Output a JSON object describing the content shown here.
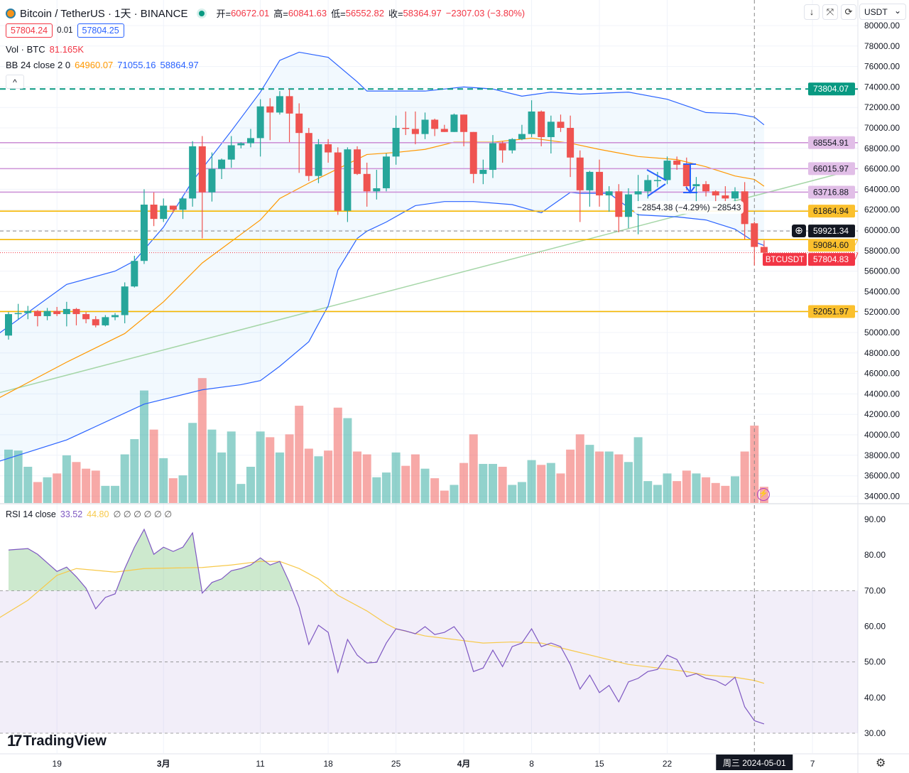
{
  "header": {
    "symbol": "Bitcoin / TetherUS · 1天 · BINANCE",
    "o_label": "开=",
    "o": "60672.01",
    "h_label": "高=",
    "h": "60841.63",
    "l_label": "低=",
    "l": "56552.82",
    "c_label": "收=",
    "c": "58364.97",
    "change": "−2307.03 (−3.80%)"
  },
  "quote": {
    "bid": "57804.24",
    "spread": "0.01",
    "ask": "57804.25"
  },
  "volume_legend": {
    "label": "Vol · BTC",
    "value": "81.165K"
  },
  "bb_legend": {
    "label": "BB 24 close 2 0",
    "basis": "64960.07",
    "upper": "71055.16",
    "lower": "58864.97"
  },
  "rsi_legend": {
    "label": "RSI 14 close",
    "value": "33.52",
    "ma": "44.80",
    "extras": "∅ ∅ ∅ ∅ ∅ ∅"
  },
  "toolbar": {
    "currency": "USDT",
    "currency_chevron": "⌄",
    "collapse": "^",
    "buttons": [
      "↓",
      "⤧",
      "⟳"
    ]
  },
  "brand": "TradingView",
  "colors": {
    "up": "#26a69a",
    "down": "#ef5350",
    "bb": "#2962ff",
    "basis": "#ff9800",
    "rsi": "#7e57c2",
    "rsi_ma": "#f7c94a",
    "hline_purple": "#ce93d8",
    "hline_yellow": "#f5b700",
    "hline_green": "#089981",
    "trend": "#a5d6a7"
  },
  "price_axis": {
    "ticks": [
      "80000.00",
      "78000.00",
      "76000.00",
      "74000.00",
      "72000.00",
      "70000.00",
      "68000.00",
      "66000.00",
      "64000.00",
      "62000.00",
      "60000.00",
      "58000.00",
      "56000.00",
      "54000.00",
      "52000.00",
      "50000.00",
      "48000.00",
      "46000.00",
      "44000.00",
      "42000.00",
      "40000.00",
      "38000.00",
      "36000.00",
      "34000.00"
    ]
  },
  "rsi_axis": {
    "ticks": [
      "90.00",
      "80.00",
      "70.00",
      "60.00",
      "50.00",
      "40.00",
      "30.00"
    ]
  },
  "time_axis": {
    "labels": [
      {
        "date": "2024-02-19",
        "text": "19"
      },
      {
        "date": "2024-03-01",
        "text": "3月"
      },
      {
        "date": "2024-03-11",
        "text": "11"
      },
      {
        "date": "2024-03-18",
        "text": "18"
      },
      {
        "date": "2024-03-25",
        "text": "25"
      },
      {
        "date": "2024-04-01",
        "text": "4月"
      },
      {
        "date": "2024-04-08",
        "text": "8"
      },
      {
        "date": "2024-04-15",
        "text": "15"
      },
      {
        "date": "2024-04-22",
        "text": "22"
      },
      {
        "date": "2024-05-07",
        "text": "7"
      }
    ],
    "crosshair": "周三 2024-05-01"
  },
  "levels": [
    {
      "price": 73804.07,
      "label": "73804.07",
      "kind": "green-dashed"
    },
    {
      "price": 68554.91,
      "label": "68554.91",
      "kind": "purple"
    },
    {
      "price": 66015.97,
      "label": "66015.97",
      "kind": "purple"
    },
    {
      "price": 63716.88,
      "label": "63716.88",
      "kind": "purple"
    },
    {
      "price": 61864.94,
      "label": "61864.94",
      "kind": "yellow"
    },
    {
      "price": 59084.6,
      "label": "59084.60",
      "kind": "yellow"
    },
    {
      "price": 52051.97,
      "label": "52051.97",
      "kind": "yellow"
    }
  ],
  "crosshair_price": {
    "price": 59921.34,
    "label": "59921.34"
  },
  "last_price": {
    "price": 57804.83,
    "label": "57804.83",
    "symbol": "BTCUSDT"
  },
  "measure": {
    "text": "−2854.38 (−4.29%) −28543"
  },
  "chart_data": {
    "type": "candlestick",
    "ohlc_fields": [
      "date",
      "open",
      "high",
      "low",
      "close"
    ],
    "candles": [
      [
        "2024-02-14",
        49700,
        52000,
        49300,
        51800
      ],
      [
        "2024-02-15",
        51800,
        52800,
        51300,
        51900
      ],
      [
        "2024-02-16",
        51900,
        52600,
        51300,
        52100
      ],
      [
        "2024-02-17",
        52100,
        52200,
        50600,
        51600
      ],
      [
        "2024-02-18",
        51600,
        52400,
        51200,
        52100
      ],
      [
        "2024-02-19",
        52100,
        52500,
        51600,
        51800
      ],
      [
        "2024-02-20",
        51800,
        53000,
        50600,
        52300
      ],
      [
        "2024-02-21",
        52300,
        52400,
        50700,
        51800
      ],
      [
        "2024-02-22",
        51800,
        52000,
        50900,
        51300
      ],
      [
        "2024-02-23",
        51300,
        51600,
        50500,
        50700
      ],
      [
        "2024-02-24",
        50700,
        51700,
        50600,
        51500
      ],
      [
        "2024-02-25",
        51500,
        51900,
        51200,
        51700
      ],
      [
        "2024-02-26",
        51700,
        54900,
        50900,
        54500
      ],
      [
        "2024-02-27",
        54500,
        57500,
        54400,
        57000
      ],
      [
        "2024-02-28",
        57000,
        64000,
        56700,
        62500
      ],
      [
        "2024-02-29",
        62500,
        63700,
        60400,
        61100
      ],
      [
        "2024-03-01",
        61100,
        63100,
        60800,
        62400
      ],
      [
        "2024-03-02",
        62400,
        62400,
        61700,
        62000
      ],
      [
        "2024-03-03",
        62000,
        63200,
        61100,
        63100
      ],
      [
        "2024-03-04",
        63100,
        68700,
        62300,
        68200
      ],
      [
        "2024-03-05",
        68200,
        69200,
        59200,
        63700
      ],
      [
        "2024-03-06",
        63700,
        67600,
        62800,
        66000
      ],
      [
        "2024-03-07",
        66000,
        67000,
        65000,
        66900
      ],
      [
        "2024-03-08",
        66900,
        69200,
        66100,
        68300
      ],
      [
        "2024-03-09",
        68300,
        68600,
        68000,
        68500
      ],
      [
        "2024-03-10",
        68500,
        69900,
        68100,
        69000
      ],
      [
        "2024-03-11",
        69000,
        72800,
        67200,
        72100
      ],
      [
        "2024-03-12",
        72100,
        72900,
        68800,
        71500
      ],
      [
        "2024-03-13",
        71500,
        73600,
        71300,
        73100
      ],
      [
        "2024-03-14",
        73100,
        73800,
        68600,
        71400
      ],
      [
        "2024-03-15",
        71400,
        72400,
        65600,
        69500
      ],
      [
        "2024-03-16",
        69500,
        70000,
        64800,
        65300
      ],
      [
        "2024-03-17",
        65300,
        68900,
        64600,
        68400
      ],
      [
        "2024-03-18",
        68400,
        68900,
        66600,
        67600
      ],
      [
        "2024-03-19",
        67600,
        68100,
        61500,
        61900
      ],
      [
        "2024-03-20",
        61900,
        68100,
        60800,
        67900
      ],
      [
        "2024-03-21",
        67900,
        68200,
        65400,
        65500
      ],
      [
        "2024-03-22",
        65500,
        66600,
        62300,
        63800
      ],
      [
        "2024-03-23",
        63800,
        65900,
        63000,
        64100
      ],
      [
        "2024-03-24",
        64100,
        67500,
        63800,
        67200
      ],
      [
        "2024-03-25",
        67200,
        71200,
        66400,
        70000
      ],
      [
        "2024-03-26",
        70000,
        71600,
        69300,
        69900
      ],
      [
        "2024-03-27",
        69900,
        71600,
        68400,
        69400
      ],
      [
        "2024-03-28",
        69400,
        71500,
        68900,
        70800
      ],
      [
        "2024-03-29",
        70800,
        70900,
        69200,
        69900
      ],
      [
        "2024-03-30",
        69900,
        70300,
        69600,
        69600
      ],
      [
        "2024-03-31",
        69600,
        71400,
        69600,
        71300
      ],
      [
        "2024-04-01",
        71300,
        71300,
        68200,
        69600
      ],
      [
        "2024-04-02",
        69600,
        69600,
        64600,
        65500
      ],
      [
        "2024-04-03",
        65500,
        66900,
        64500,
        65900
      ],
      [
        "2024-04-04",
        65900,
        69300,
        65100,
        68500
      ],
      [
        "2024-04-05",
        68500,
        68700,
        66600,
        67800
      ],
      [
        "2024-04-06",
        67800,
        69000,
        67500,
        68900
      ],
      [
        "2024-04-07",
        68900,
        70300,
        68800,
        69400
      ],
      [
        "2024-04-08",
        69400,
        72700,
        69100,
        71600
      ],
      [
        "2024-04-09",
        71600,
        71700,
        68200,
        69100
      ],
      [
        "2024-04-10",
        69100,
        71200,
        67500,
        70600
      ],
      [
        "2024-04-11",
        70600,
        71300,
        69600,
        70000
      ],
      [
        "2024-04-12",
        70000,
        71200,
        65200,
        67100
      ],
      [
        "2024-04-13",
        67100,
        67800,
        60800,
        63900
      ],
      [
        "2024-04-14",
        63900,
        65800,
        62300,
        65700
      ],
      [
        "2024-04-15",
        65700,
        66900,
        62300,
        63400
      ],
      [
        "2024-04-16",
        63400,
        64300,
        61800,
        63800
      ],
      [
        "2024-04-17",
        63800,
        64500,
        59800,
        61300
      ],
      [
        "2024-04-18",
        61300,
        64100,
        60200,
        63500
      ],
      [
        "2024-04-19",
        63500,
        65400,
        59600,
        63800
      ],
      [
        "2024-04-20",
        63800,
        65400,
        63100,
        64900
      ],
      [
        "2024-04-21",
        64900,
        65700,
        64200,
        64900
      ],
      [
        "2024-04-22",
        64900,
        67200,
        64500,
        66800
      ],
      [
        "2024-04-23",
        66800,
        67200,
        65900,
        66400
      ],
      [
        "2024-04-24",
        66400,
        67100,
        63900,
        64300
      ],
      [
        "2024-04-25",
        64300,
        65200,
        62800,
        64500
      ],
      [
        "2024-04-26",
        64500,
        64800,
        63300,
        63800
      ],
      [
        "2024-04-27",
        63800,
        63900,
        62800,
        63400
      ],
      [
        "2024-04-28",
        63400,
        64300,
        62800,
        63100
      ],
      [
        "2024-04-29",
        63100,
        64200,
        61800,
        63800
      ],
      [
        "2024-04-30",
        63800,
        64700,
        59100,
        60600
      ],
      [
        "2024-05-01",
        60672.01,
        60841.63,
        56552.82,
        58364.97
      ],
      [
        "2024-05-02",
        58364.97,
        59000,
        57500,
        57804.83
      ]
    ],
    "volume_k": [
      56,
      55,
      38,
      22,
      27,
      31,
      50,
      43,
      36,
      34,
      18,
      18,
      51,
      67,
      118,
      77,
      47,
      26,
      29,
      84,
      131,
      77,
      53,
      75,
      20,
      38,
      75,
      69,
      53,
      72,
      102,
      57,
      49,
      55,
      100,
      89,
      54,
      51,
      27,
      32,
      53,
      39,
      51,
      36,
      26,
      13,
      19,
      42,
      72,
      41,
      41,
      38,
      19,
      22,
      45,
      40,
      42,
      31,
      56,
      72,
      61,
      54,
      54,
      51,
      43,
      69,
      23,
      19,
      31,
      23,
      34,
      31,
      27,
      21,
      18,
      28,
      54,
      81.165,
      17
    ],
    "bb_upper": [
      [
        "2024-02-13",
        49900
      ],
      [
        "2024-02-20",
        54700
      ],
      [
        "2024-02-25",
        56000
      ],
      [
        "2024-02-27",
        57000
      ],
      [
        "2024-03-01",
        60300
      ],
      [
        "2024-03-04",
        64800
      ],
      [
        "2024-03-08",
        69700
      ],
      [
        "2024-03-11",
        73500
      ],
      [
        "2024-03-13",
        76600
      ],
      [
        "2024-03-15",
        77400
      ],
      [
        "2024-03-18",
        76900
      ],
      [
        "2024-03-21",
        74500
      ],
      [
        "2024-03-22",
        73600
      ],
      [
        "2024-03-28",
        73600
      ],
      [
        "2024-04-01",
        74000
      ],
      [
        "2024-04-04",
        73800
      ],
      [
        "2024-04-07",
        73100
      ],
      [
        "2024-04-10",
        73500
      ],
      [
        "2024-04-13",
        73300
      ],
      [
        "2024-04-18",
        73500
      ],
      [
        "2024-04-22",
        72800
      ],
      [
        "2024-04-26",
        71500
      ],
      [
        "2024-04-29",
        71400
      ],
      [
        "2024-05-01",
        71055.16
      ],
      [
        "2024-05-02",
        70300
      ]
    ],
    "bb_basis": [
      [
        "2024-02-13",
        43600
      ],
      [
        "2024-02-20",
        47100
      ],
      [
        "2024-02-26",
        49900
      ],
      [
        "2024-03-01",
        53000
      ],
      [
        "2024-03-05",
        56800
      ],
      [
        "2024-03-11",
        61000
      ],
      [
        "2024-03-13",
        63100
      ],
      [
        "2024-03-16",
        64600
      ],
      [
        "2024-03-19",
        66000
      ],
      [
        "2024-03-22",
        67400
      ],
      [
        "2024-03-25",
        67600
      ],
      [
        "2024-03-28",
        67900
      ],
      [
        "2024-03-31",
        68600
      ],
      [
        "2024-04-04",
        68600
      ],
      [
        "2024-04-08",
        69000
      ],
      [
        "2024-04-12",
        68500
      ],
      [
        "2024-04-15",
        67900
      ],
      [
        "2024-04-19",
        67200
      ],
      [
        "2024-04-23",
        66900
      ],
      [
        "2024-04-26",
        66200
      ],
      [
        "2024-04-29",
        65300
      ],
      [
        "2024-05-01",
        64960.07
      ],
      [
        "2024-05-02",
        64300
      ]
    ],
    "bb_lower": [
      [
        "2024-02-13",
        37400
      ],
      [
        "2024-02-20",
        39500
      ],
      [
        "2024-02-28",
        43000
      ],
      [
        "2024-03-05",
        44400
      ],
      [
        "2024-03-09",
        44900
      ],
      [
        "2024-03-11",
        45300
      ],
      [
        "2024-03-13",
        46700
      ],
      [
        "2024-03-16",
        49100
      ],
      [
        "2024-03-18",
        52600
      ],
      [
        "2024-03-19",
        56100
      ],
      [
        "2024-03-21",
        59200
      ],
      [
        "2024-03-22",
        59900
      ],
      [
        "2024-03-24",
        60800
      ],
      [
        "2024-03-27",
        62400
      ],
      [
        "2024-03-30",
        62800
      ],
      [
        "2024-04-02",
        62800
      ],
      [
        "2024-04-06",
        62500
      ],
      [
        "2024-04-09",
        61700
      ],
      [
        "2024-04-12",
        63700
      ],
      [
        "2024-04-13",
        63600
      ],
      [
        "2024-04-16",
        63600
      ],
      [
        "2024-04-19",
        61500
      ],
      [
        "2024-04-23",
        61300
      ],
      [
        "2024-04-26",
        61000
      ],
      [
        "2024-04-29",
        60100
      ],
      [
        "2024-05-01",
        58864.97
      ],
      [
        "2024-05-02",
        58500
      ]
    ],
    "trendline": [
      [
        "2024-02-13",
        44100
      ],
      [
        "2024-05-11",
        65830
      ]
    ],
    "rsi": [
      81.4,
      81.6,
      81.8,
      80.2,
      77.8,
      75.4,
      76.6,
      73.9,
      70.7,
      64.9,
      68.1,
      69.1,
      76.2,
      82.2,
      87.2,
      80.2,
      82.2,
      81.0,
      82.2,
      86.2,
      69.3,
      72.3,
      73.3,
      75.6,
      76.2,
      77.2,
      79.2,
      77.2,
      78.2,
      72.3,
      65.3,
      54.9,
      60.3,
      58.3,
      47.1,
      56.3,
      51.9,
      49.7,
      49.9,
      55.3,
      59.3,
      58.7,
      57.9,
      59.9,
      57.7,
      58.3,
      59.9,
      56.3,
      47.3,
      48.3,
      53.3,
      48.7,
      54.3,
      55.3,
      59.3,
      54.3,
      55.3,
      54.3,
      49.3,
      42.4,
      46.3,
      41.4,
      43.4,
      38.8,
      44.4,
      45.4,
      47.3,
      47.9,
      51.9,
      50.7,
      45.9,
      46.7,
      45.4,
      44.8,
      43.4,
      45.7,
      37.4,
      33.52,
      32.6
    ],
    "rsi_ma": [
      [
        "2024-02-13",
        62.3
      ],
      [
        "2024-02-16",
        67.3
      ],
      [
        "2024-02-19",
        74.3
      ],
      [
        "2024-02-21",
        76.2
      ],
      [
        "2024-02-25",
        75.2
      ],
      [
        "2024-02-28",
        76.2
      ],
      [
        "2024-03-05",
        76.5
      ],
      [
        "2024-03-08",
        77.2
      ],
      [
        "2024-03-11",
        78.2
      ],
      [
        "2024-03-13",
        78.2
      ],
      [
        "2024-03-15",
        76.2
      ],
      [
        "2024-03-17",
        73.3
      ],
      [
        "2024-03-19",
        68.7
      ],
      [
        "2024-03-22",
        64.3
      ],
      [
        "2024-03-24",
        60.7
      ],
      [
        "2024-03-25",
        59.3
      ],
      [
        "2024-03-28",
        57.3
      ],
      [
        "2024-03-31",
        56.3
      ],
      [
        "2024-04-03",
        55.3
      ],
      [
        "2024-04-06",
        55.6
      ],
      [
        "2024-04-09",
        55.3
      ],
      [
        "2024-04-12",
        53.3
      ],
      [
        "2024-04-15",
        51.3
      ],
      [
        "2024-04-18",
        49.3
      ],
      [
        "2024-04-21",
        48.3
      ],
      [
        "2024-04-24",
        47.3
      ],
      [
        "2024-04-26",
        46.3
      ],
      [
        "2024-04-29",
        45.7
      ],
      [
        "2024-05-01",
        44.8
      ],
      [
        "2024-05-02",
        44.0
      ]
    ],
    "price_range": [
      34000,
      80000
    ],
    "rsi_range": [
      30,
      90
    ],
    "rsi_bands": [
      30,
      50,
      70
    ]
  }
}
